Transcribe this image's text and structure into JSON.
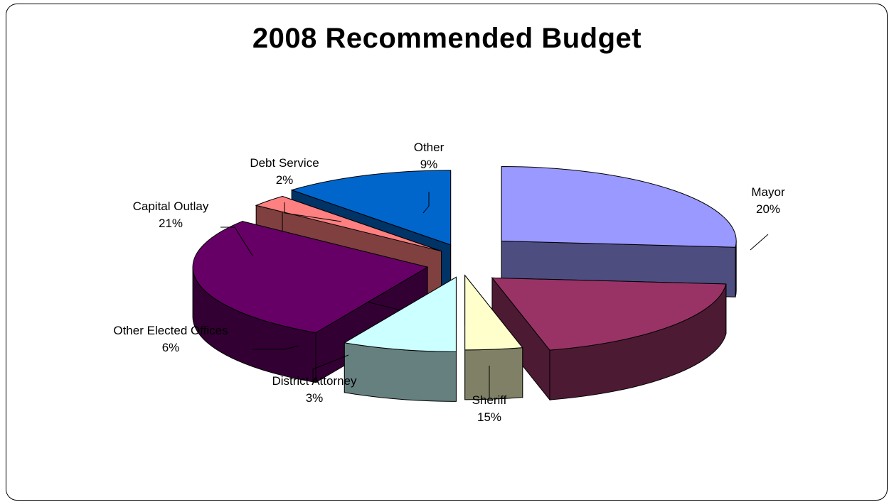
{
  "chart_data": {
    "type": "pie",
    "title": "2008 Recommended Budget",
    "slices": [
      {
        "label": "Mayor",
        "percent": "20%",
        "value": 20,
        "top_color": "#9999FF",
        "side_color": "#4D4D80"
      },
      {
        "label": "Sheriff",
        "percent": "15%",
        "value": 15,
        "top_color": "#993366",
        "side_color": "#4D1A33"
      },
      {
        "label": "District Attorney",
        "percent": "3%",
        "value": 3,
        "top_color": "#FFFFCC",
        "side_color": "#808066"
      },
      {
        "label": "Other Elected Offices",
        "percent": "6%",
        "value": 6,
        "top_color": "#CCFFFF",
        "side_color": "#668080"
      },
      {
        "label": "Capital Outlay",
        "percent": "21%",
        "value": 21,
        "top_color": "#660066",
        "side_color": "#330033"
      },
      {
        "label": "Debt Service",
        "percent": "2%",
        "value": 2,
        "top_color": "#FF8080",
        "side_color": "#804040"
      },
      {
        "label": "Other",
        "percent": "9%",
        "value": 9,
        "top_color": "#0066CC",
        "side_color": "#003366"
      }
    ],
    "exploded": true,
    "style": "3d"
  }
}
